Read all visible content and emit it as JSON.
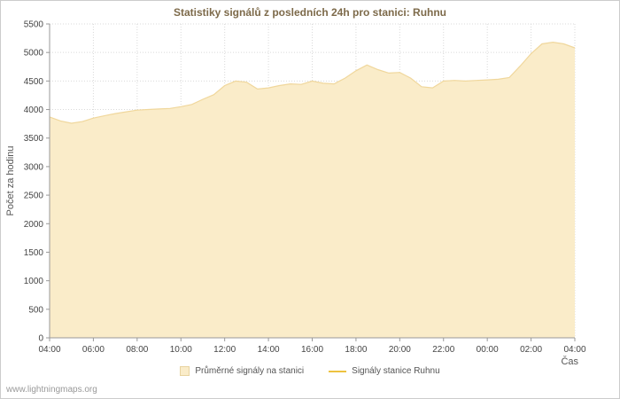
{
  "page": {
    "watermark": "www.lightningmaps.org"
  },
  "chart_data": {
    "type": "area",
    "title": "Statistiky signálů z posledních 24h pro stanici: Ruhnu",
    "xlabel": "Čas",
    "ylabel": "Počet za hodinu",
    "ylim": [
      0,
      5500
    ],
    "y_tick_step": 500,
    "x_ticks": [
      "04:00",
      "06:00",
      "08:00",
      "10:00",
      "12:00",
      "14:00",
      "16:00",
      "18:00",
      "20:00",
      "22:00",
      "00:00",
      "02:00",
      "04:00"
    ],
    "x_tick_hour_spacing": 2,
    "grid": "dotted",
    "legend_position": "bottom",
    "series": [
      {
        "name": "Průměrné signály na stanici",
        "type": "area",
        "color": "#faecc9",
        "edge_color": "#f0d79c",
        "x": [
          0,
          0.5,
          1,
          1.5,
          2,
          2.5,
          3,
          3.5,
          4,
          4.5,
          5,
          5.5,
          6,
          6.5,
          7,
          7.5,
          8,
          8.5,
          9,
          9.5,
          10,
          10.5,
          11,
          11.5,
          12,
          12.5,
          13,
          13.5,
          14,
          14.5,
          15,
          15.5,
          16,
          16.5,
          17,
          17.5,
          18,
          18.5,
          19,
          19.5,
          20,
          20.5,
          21,
          21.5,
          22,
          22.5,
          23,
          23.5,
          24
        ],
        "values": [
          3870,
          3800,
          3760,
          3790,
          3850,
          3890,
          3930,
          3960,
          3990,
          4000,
          4010,
          4020,
          4050,
          4090,
          4180,
          4260,
          4420,
          4500,
          4480,
          4360,
          4380,
          4420,
          4450,
          4440,
          4500,
          4460,
          4450,
          4550,
          4680,
          4780,
          4700,
          4640,
          4650,
          4550,
          4400,
          4380,
          4500,
          4510,
          4500,
          4510,
          4520,
          4530,
          4560,
          4760,
          4980,
          5150,
          5180,
          5150,
          5080
        ]
      },
      {
        "name": "Signály stanice Ruhnu",
        "type": "line",
        "color": "#edc240",
        "x": [],
        "values": []
      }
    ]
  }
}
